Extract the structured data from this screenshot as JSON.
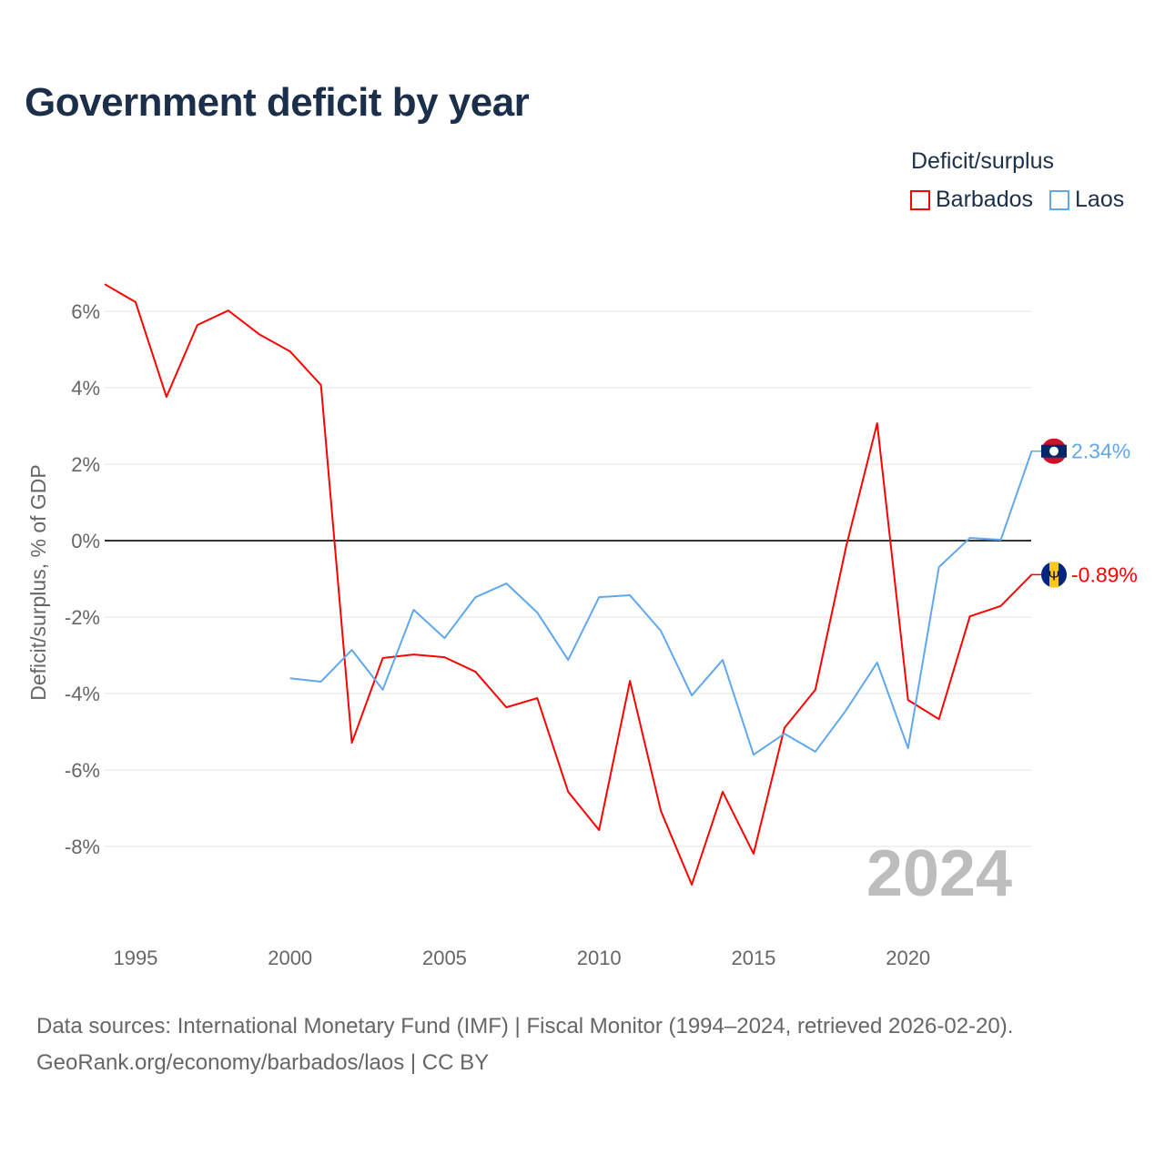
{
  "title": "Government deficit by year",
  "legend": {
    "title": "Deficit/surplus",
    "items": [
      {
        "label": "Barbados",
        "color": "#ff0000"
      },
      {
        "label": "Laos",
        "color": "#5fa8ee"
      }
    ]
  },
  "source": {
    "line1": "Data sources: International Monetary Fund (IMF) | Fiscal Monitor (1994–2024, retrieved 2026-02-20).",
    "line2": "GeoRank.org/economy/barbados/laos | CC BY"
  },
  "chart_data": {
    "type": "line",
    "title": "Government deficit by year",
    "ylabel": "Deficit/surplus, % of GDP",
    "xlabel": "",
    "year_watermark": "2024",
    "xlim": [
      1994,
      2024
    ],
    "ylim": [
      -9.7,
      7.2
    ],
    "x_ticks": [
      1995,
      2000,
      2005,
      2010,
      2015,
      2020
    ],
    "y_ticks": [
      6,
      4,
      2,
      0,
      -2,
      -4,
      -6,
      -8
    ],
    "y_tick_labels": [
      "6%",
      "4%",
      "2%",
      "0%",
      "-2%",
      "-4%",
      "-6%",
      "-8%"
    ],
    "series": [
      {
        "name": "Barbados",
        "color": "#ff0000",
        "end_label": "-0.89%",
        "start": 1994,
        "values": [
          6.71,
          6.24,
          3.76,
          5.64,
          6.02,
          5.4,
          4.95,
          4.07,
          -5.29,
          -3.07,
          -2.98,
          -3.05,
          -3.43,
          -4.36,
          -4.12,
          -6.57,
          -7.57,
          -3.67,
          -7.07,
          -9.0,
          -6.57,
          -8.19,
          -4.9,
          -3.9,
          -0.14,
          3.07,
          -4.17,
          -4.67,
          -1.98,
          -1.71,
          -0.89
        ]
      },
      {
        "name": "Laos",
        "color": "#5fa8ee",
        "end_label": "2.34%",
        "start": 2000,
        "values": [
          -3.6,
          -3.69,
          -2.86,
          -3.9,
          -1.81,
          -2.55,
          -1.48,
          -1.12,
          -1.88,
          -3.12,
          -1.48,
          -1.43,
          -2.36,
          -4.05,
          -3.12,
          -5.6,
          -5.05,
          -5.52,
          -4.43,
          -3.19,
          -5.43,
          -0.69,
          0.07,
          0.02,
          2.34
        ]
      }
    ]
  }
}
